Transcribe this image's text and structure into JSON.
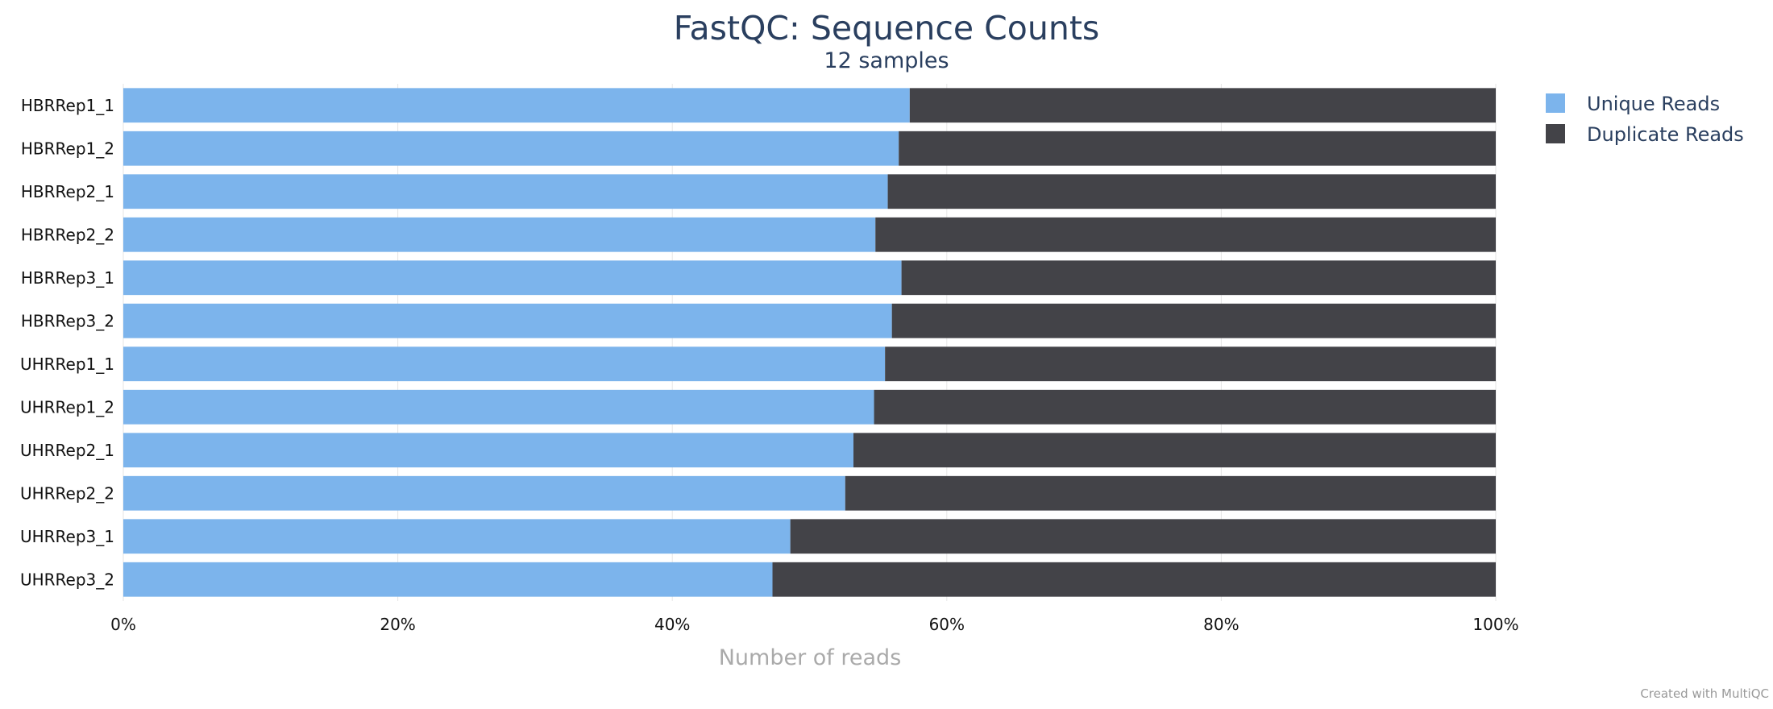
{
  "chart_data": {
    "type": "bar",
    "orientation": "horizontal",
    "stacked": true,
    "title": "FastQC: Sequence Counts",
    "subtitle": "12 samples",
    "xlabel": "Number of reads",
    "ylabel": "",
    "xlim": [
      0,
      100
    ],
    "x_ticks": [
      "0%",
      "20%",
      "40%",
      "60%",
      "80%",
      "100%"
    ],
    "x_tick_values": [
      0,
      20,
      40,
      60,
      80,
      100
    ],
    "grid": true,
    "legend_position": "top-right",
    "categories": [
      "HBRRep1_1",
      "HBRRep1_2",
      "HBRRep2_1",
      "HBRRep2_2",
      "HBRRep3_1",
      "HBRRep3_2",
      "UHRRep1_1",
      "UHRRep1_2",
      "UHRRep2_1",
      "UHRRep2_2",
      "UHRRep3_1",
      "UHRRep3_2"
    ],
    "series": [
      {
        "name": "Unique Reads",
        "color": "#7cb4ec",
        "values": [
          57.3,
          56.5,
          55.7,
          54.8,
          56.7,
          56.0,
          55.5,
          54.7,
          53.2,
          52.6,
          48.6,
          47.3
        ]
      },
      {
        "name": "Duplicate Reads",
        "color": "#434348",
        "values": [
          42.7,
          43.5,
          44.3,
          45.2,
          43.3,
          44.0,
          44.5,
          45.3,
          46.8,
          47.4,
          51.4,
          52.7
        ]
      }
    ]
  },
  "credit": "Created with MultiQC"
}
